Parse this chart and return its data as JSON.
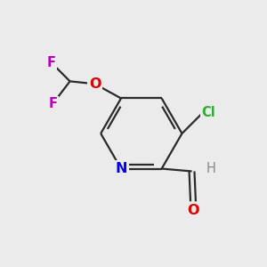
{
  "bg_color": "#ebebeb",
  "bond_color": "#2a2a2a",
  "bond_width": 1.6,
  "atom_colors": {
    "N": "#0000ee",
    "O": "#dd0000",
    "F": "#bb00bb",
    "Cl": "#33aa33",
    "C": "#2a2a2a",
    "H": "#888888"
  },
  "font_size": 10.5,
  "aldehyde_H_color": "#888888"
}
